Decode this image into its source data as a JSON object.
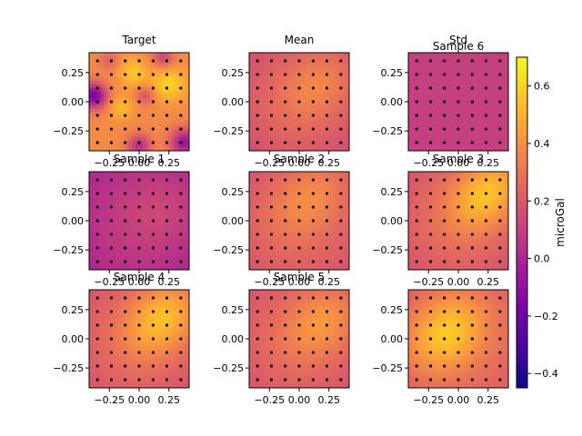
{
  "chart_data": {
    "type": "heatmap",
    "colorbar": {
      "label": "microGal",
      "range": [
        -0.45,
        0.7
      ],
      "ticks": [
        -0.4,
        -0.2,
        0.0,
        0.2,
        0.4,
        0.6
      ],
      "tick_labels": [
        "−0.4",
        "−0.2",
        "0.0",
        "0.2",
        "0.4",
        "0.6"
      ],
      "colormap": "plasma"
    },
    "axes_ranges": {
      "x": [
        -0.42,
        0.42
      ],
      "y": [
        -0.42,
        0.42
      ]
    },
    "x_tick_values": [
      -0.25,
      0.0,
      0.25
    ],
    "x_tick_labels": [
      "−0.25",
      "0.00",
      "0.25"
    ],
    "y_tick_values": [
      0.25,
      0.0,
      -0.25
    ],
    "y_tick_labels": [
      "0.25",
      "0.00",
      "−0.25"
    ],
    "station_grid": [
      -0.35,
      -0.233,
      -0.117,
      0.0,
      0.117,
      0.233,
      0.35
    ],
    "panels": [
      {
        "title": "Target",
        "field": "target"
      },
      {
        "title": "Mean",
        "field": "smooth",
        "base": 0.28,
        "amp": 0.14,
        "cx": 0.15,
        "cy": 0.15,
        "tilt": 0.6
      },
      {
        "title": "Std",
        "field": "flat",
        "value": 0.1,
        "overlay_title": "Sample 6"
      },
      {
        "title": "Sample 1",
        "field": "smooth",
        "base": 0.12,
        "amp": 0.06,
        "cx": 0.2,
        "cy": 0.1,
        "tilt": 0.4
      },
      {
        "title": "Sample 2",
        "field": "smooth",
        "base": 0.3,
        "amp": 0.14,
        "cx": 0.1,
        "cy": 0.2,
        "tilt": 0.7
      },
      {
        "title": "Sample 3",
        "field": "smooth",
        "base": 0.3,
        "amp": 0.32,
        "cx": 0.25,
        "cy": 0.25,
        "tilt": 0.7
      },
      {
        "title": "Sample 4",
        "field": "smooth",
        "base": 0.3,
        "amp": 0.3,
        "cx": 0.2,
        "cy": 0.18,
        "tilt": 0.6
      },
      {
        "title": "Sample 5",
        "field": "smooth",
        "base": 0.3,
        "amp": 0.18,
        "cx": 0.2,
        "cy": 0.15,
        "tilt": 0.6
      },
      {
        "title": "",
        "field": "smooth",
        "base": 0.34,
        "amp": 0.28,
        "cx": -0.1,
        "cy": 0.05,
        "tilt": 0.5
      }
    ]
  }
}
